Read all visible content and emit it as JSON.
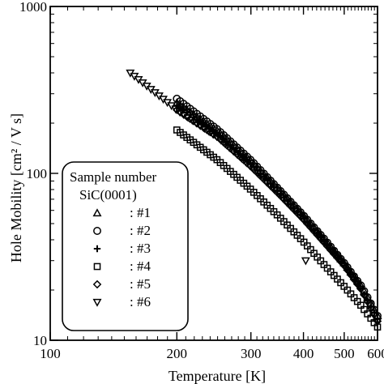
{
  "chart_data": {
    "type": "scatter",
    "xlabel": "Temperature  [K]",
    "ylabel": "Hole Mobility  [cm² / V s]",
    "xscale": "log",
    "yscale": "log",
    "xlim": [
      100,
      600
    ],
    "ylim": [
      10,
      1000
    ],
    "x_ticks": [
      "100",
      "200",
      "300",
      "400",
      "500",
      "600"
    ],
    "y_ticks": [
      "10",
      "100",
      "1000"
    ],
    "legend": {
      "title_line1": "Sample number",
      "title_line2": "SiC(0001)",
      "placement": "lower-left"
    },
    "series": [
      {
        "name": ": #1",
        "marker": "triangle-up",
        "x": [
          200,
          250,
          300,
          350,
          400,
          450,
          500,
          550,
          600
        ],
        "y": [
          265,
          180,
          119,
          80,
          56,
          40,
          29,
          21,
          14
        ]
      },
      {
        "name": ": #2",
        "marker": "circle",
        "x": [
          200,
          250,
          300,
          350,
          400,
          450,
          500,
          550,
          600
        ],
        "y": [
          280,
          183,
          120,
          80,
          56,
          40,
          29,
          21,
          14
        ]
      },
      {
        "name": ": #3",
        "marker": "plus",
        "x": [
          200,
          250,
          300,
          350,
          400,
          450,
          500,
          550,
          600
        ],
        "y": [
          255,
          172,
          114,
          77,
          54,
          39,
          28,
          20,
          13.5
        ]
      },
      {
        "name": ": #4",
        "marker": "square",
        "x": [
          200,
          250,
          300,
          350,
          400,
          450,
          500,
          550,
          600
        ],
        "y": [
          182,
          120,
          80,
          55,
          39,
          28,
          21,
          16,
          12
        ]
      },
      {
        "name": ": #5",
        "marker": "diamond",
        "x": [
          200,
          250,
          300,
          350,
          400,
          450,
          500,
          550,
          600
        ],
        "y": [
          240,
          165,
          110,
          75,
          53,
          38,
          28,
          20,
          13
        ]
      },
      {
        "name": ": #6",
        "marker": "triangle-down",
        "x": [
          155,
          200,
          250,
          300,
          350,
          400,
          450,
          500,
          550,
          600
        ],
        "y": [
          400,
          240,
          165,
          110,
          75,
          53,
          38,
          28,
          20,
          13
        ]
      }
    ]
  }
}
